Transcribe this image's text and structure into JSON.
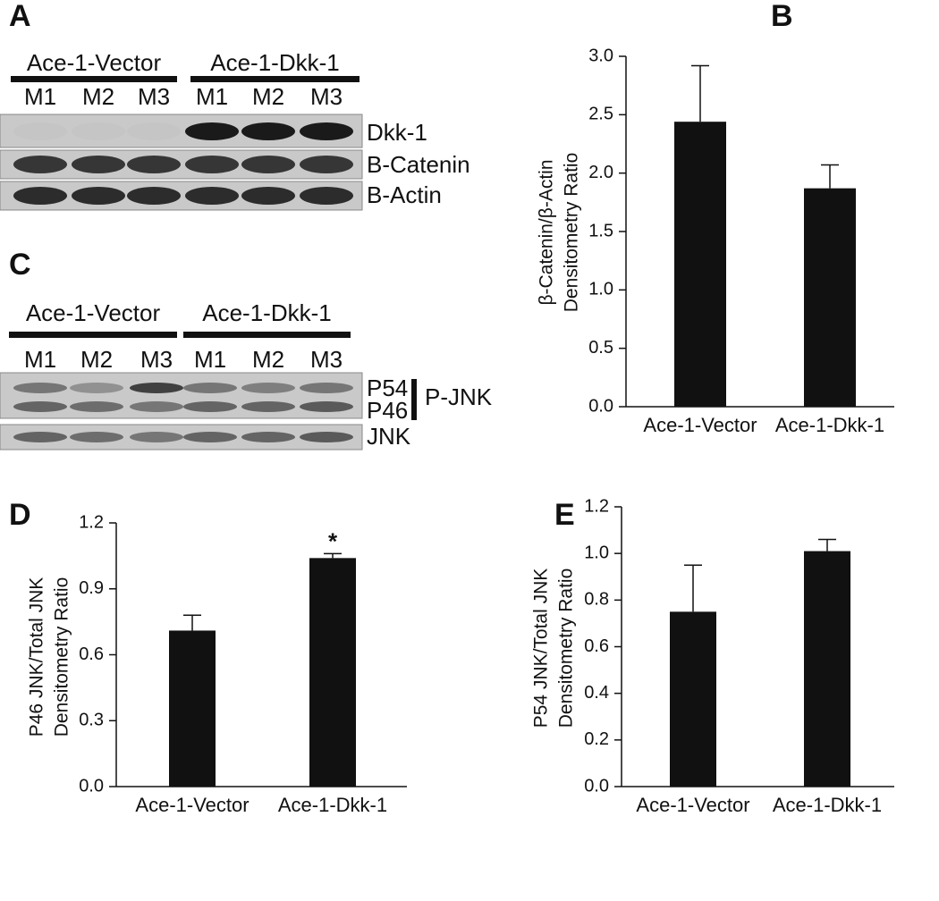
{
  "blots": [
    {
      "panel_label": "A",
      "groups": [
        "Ace-1-Vector",
        "Ace-1-Dkk-1"
      ],
      "lanes": [
        "M1",
        "M2",
        "M3",
        "M1",
        "M2",
        "M3"
      ],
      "rows": [
        "Dkk-1",
        "B-Catenin",
        "B-Actin"
      ]
    },
    {
      "panel_label": "C",
      "groups": [
        "Ace-1-Vector",
        "Ace-1-Dkk-1"
      ],
      "lanes": [
        "M1",
        "M2",
        "M3",
        "M1",
        "M2",
        "M3"
      ],
      "rows": [
        "P54",
        "P46",
        "JNK"
      ],
      "bracket_label": "P-JNK"
    }
  ],
  "chart_data": [
    {
      "type": "bar",
      "panel_label": "B",
      "y_label": [
        "β-Catenin/β-Actin",
        "Densitometry Ratio"
      ],
      "categories": [
        "Ace-1-Vector",
        "Ace-1-Dkk-1"
      ],
      "values": [
        2.44,
        1.87
      ],
      "errors": [
        0.48,
        0.2
      ],
      "color": "#111111",
      "ylim": [
        0,
        3
      ],
      "yticks": [
        {
          "value": 0,
          "label": "0.0"
        },
        0.5,
        {
          "value": 1,
          "label": "1.0"
        },
        1.5,
        {
          "value": 2,
          "label": "2.0"
        },
        2.5,
        {
          "value": 3,
          "label": "3.0"
        }
      ]
    },
    {
      "type": "bar",
      "panel_label": "D",
      "y_label": [
        "P46 JNK/Total JNK",
        "Densitometry Ratio"
      ],
      "categories": [
        "Ace-1-Vector",
        "Ace-1-Dkk-1"
      ],
      "values": [
        0.71,
        1.04
      ],
      "errors": [
        0.07,
        0.02
      ],
      "color": "#111111",
      "significance_marks": [
        null,
        "*"
      ],
      "ylim": [
        0,
        1.2
      ],
      "yticks": [
        {
          "value": 0,
          "label": "0.0"
        },
        0.3,
        0.6,
        0.9,
        1.2
      ]
    },
    {
      "type": "bar",
      "panel_label": "E",
      "y_label": [
        "P54 JNK/Total JNK",
        "Densitometry Ratio"
      ],
      "categories": [
        "Ace-1-Vector",
        "Ace-1-Dkk-1"
      ],
      "values": [
        0.75,
        1.01
      ],
      "errors": [
        0.2,
        0.05
      ],
      "color": "#111111",
      "ylim": [
        0,
        1.2
      ],
      "yticks": [
        {
          "value": 0,
          "label": "0.0"
        },
        0.2,
        0.4,
        0.6,
        0.8,
        {
          "value": 1,
          "label": "1.0"
        },
        1.2
      ]
    }
  ]
}
